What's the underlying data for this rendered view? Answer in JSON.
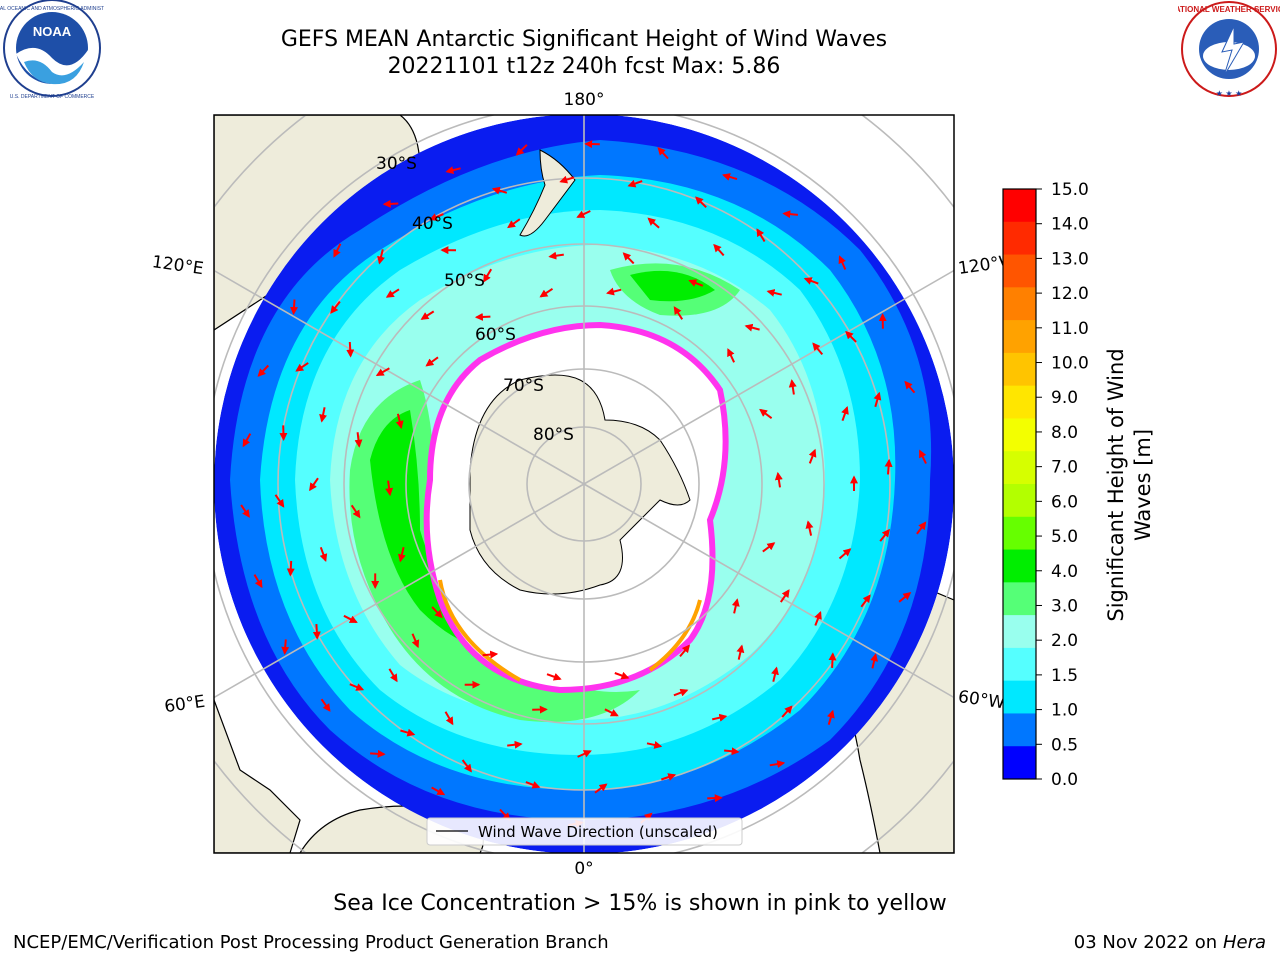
{
  "title": {
    "line1": "GEFS MEAN Antarctic Significant Height of Wind Waves",
    "line2": "20221101 t12z 240h fcst   Max: 5.86"
  },
  "logos": {
    "left": {
      "icon": "noaa-logo",
      "text": "NOAA",
      "ring_text": "NATIONAL OCEANIC AND ATMOSPHERIC ADMINISTRATION · U.S. DEPARTMENT OF COMMERCE"
    },
    "right": {
      "icon": "nws-logo",
      "ring_text": "NATIONAL WEATHER SERVICE"
    }
  },
  "map": {
    "projection": "south-polar-stereographic",
    "longitude_labels": {
      "top": "180°",
      "bottom": "0°",
      "upper_left": "120°E",
      "upper_right": "120°W",
      "lower_left": "60°E",
      "lower_right": "60°W"
    },
    "latitude_labels": [
      "30°S",
      "40°S",
      "50°S",
      "60°S",
      "70°S",
      "80°S"
    ],
    "legend": {
      "label": "Wind Wave Direction (unscaled)"
    },
    "colors": {
      "land": "#eeecdb",
      "ice_edge": "#ff33ee",
      "arrow": "#ff0000",
      "graticule": "#bbbbbb"
    }
  },
  "colorbar": {
    "label": "Significant Height of Wind Waves [m]",
    "label_line1": "Significant Height of Wind",
    "label_line2": "Waves [m]",
    "ticks": [
      "15.0",
      "14.0",
      "13.0",
      "12.0",
      "11.0",
      "10.0",
      "9.0",
      "8.0",
      "7.0",
      "6.0",
      "5.0",
      "4.0",
      "3.0",
      "2.0",
      "1.5",
      "1.0",
      "0.5",
      "0.0"
    ],
    "colors_top_to_bottom": [
      "#ff0000",
      "#ff2a00",
      "#ff5500",
      "#ff8000",
      "#ffa200",
      "#ffc400",
      "#ffe600",
      "#f3ff00",
      "#d6ff00",
      "#b3ff00",
      "#66ff00",
      "#00ee00",
      "#55ff77",
      "#99ffee",
      "#55ffff",
      "#00e8ff",
      "#0077ff",
      "#0000ff"
    ]
  },
  "footer": {
    "caption": "Sea Ice Concentration > 15% is shown in pink to yellow",
    "credit_left": "NCEP/EMC/Verification Post Processing Product Generation Branch",
    "date": "03 Nov 2022 on",
    "host": "Hera"
  }
}
